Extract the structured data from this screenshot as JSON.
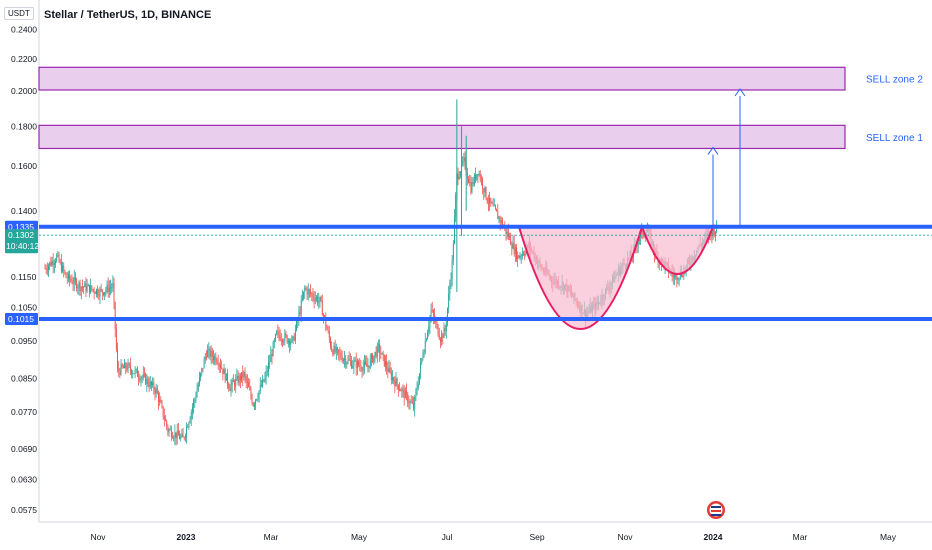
{
  "header": {
    "title": "Stellar / TetherUS, 1D, BINANCE",
    "unit": "USDT"
  },
  "chart_data": {
    "type": "candlestick",
    "y_scale": "log",
    "ylim": [
      0.0555,
      0.262
    ],
    "y_ticks": [
      "0.2400",
      "0.2200",
      "0.2000",
      "0.1800",
      "0.1600",
      "0.1400",
      "0.1150",
      "0.1050",
      "0.0950",
      "0.0850",
      "0.0770",
      "0.0690",
      "0.0630",
      "0.0575"
    ],
    "x_ticks": [
      {
        "label": "Nov",
        "bold": false
      },
      {
        "label": "2023",
        "bold": true
      },
      {
        "label": "Mar",
        "bold": false
      },
      {
        "label": "May",
        "bold": false
      },
      {
        "label": "Jul",
        "bold": false
      },
      {
        "label": "Sep",
        "bold": false
      },
      {
        "label": "Nov",
        "bold": false
      },
      {
        "label": "2024",
        "bold": true
      },
      {
        "label": "Mar",
        "bold": false
      },
      {
        "label": "May",
        "bold": false
      }
    ],
    "colors": {
      "up": "#26a69a",
      "down": "#ef5350",
      "level": "#2962ff",
      "zone_fill": "#e1bee7",
      "zone_border": "#9c27b0",
      "cup": "#e91e63",
      "cup_fill": "#f8bbd0"
    },
    "price_path": [
      [
        0,
        0.118
      ],
      [
        10,
        0.122
      ],
      [
        18,
        0.115
      ],
      [
        30,
        0.112
      ],
      [
        48,
        0.11
      ],
      [
        58,
        0.112
      ],
      [
        62,
        0.087
      ],
      [
        70,
        0.088
      ],
      [
        85,
        0.085
      ],
      [
        95,
        0.082
      ],
      [
        105,
        0.073
      ],
      [
        118,
        0.071
      ],
      [
        128,
        0.08
      ],
      [
        138,
        0.092
      ],
      [
        148,
        0.09
      ],
      [
        158,
        0.083
      ],
      [
        170,
        0.086
      ],
      [
        178,
        0.079
      ],
      [
        188,
        0.085
      ],
      [
        198,
        0.097
      ],
      [
        212,
        0.095
      ],
      [
        222,
        0.111
      ],
      [
        235,
        0.107
      ],
      [
        245,
        0.093
      ],
      [
        252,
        0.091
      ],
      [
        262,
        0.089
      ],
      [
        275,
        0.088
      ],
      [
        285,
        0.093
      ],
      [
        295,
        0.086
      ],
      [
        305,
        0.082
      ],
      [
        315,
        0.078
      ],
      [
        322,
        0.09
      ],
      [
        330,
        0.104
      ],
      [
        338,
        0.096
      ],
      [
        342,
        0.098
      ],
      [
        348,
        0.12
      ],
      [
        352,
        0.155
      ],
      [
        358,
        0.162
      ],
      [
        364,
        0.15
      ],
      [
        370,
        0.158
      ],
      [
        378,
        0.145
      ],
      [
        388,
        0.137
      ],
      [
        396,
        0.13
      ],
      [
        404,
        0.122
      ],
      [
        414,
        0.126
      ],
      [
        424,
        0.118
      ],
      [
        434,
        0.114
      ],
      [
        444,
        0.112
      ],
      [
        454,
        0.107
      ],
      [
        462,
        0.103
      ],
      [
        472,
        0.106
      ],
      [
        482,
        0.112
      ],
      [
        492,
        0.118
      ],
      [
        502,
        0.123
      ],
      [
        508,
        0.13
      ],
      [
        515,
        0.132
      ],
      [
        522,
        0.123
      ],
      [
        530,
        0.119
      ],
      [
        538,
        0.115
      ],
      [
        546,
        0.117
      ],
      [
        556,
        0.124
      ],
      [
        566,
        0.13
      ],
      [
        574,
        0.133
      ]
    ],
    "levels": [
      {
        "price": 0.1335,
        "tag": "0.1335"
      },
      {
        "price": 0.1015,
        "tag": "0.1015"
      }
    ],
    "zones": [
      {
        "label": "SELL zone 1",
        "low": 0.1685,
        "high": 0.1805
      },
      {
        "label": "SELL zone 2",
        "low": 0.2005,
        "high": 0.2145
      }
    ],
    "current_price": {
      "price": 0.1302,
      "value": "0.1302",
      "time": "10:40:12"
    }
  }
}
